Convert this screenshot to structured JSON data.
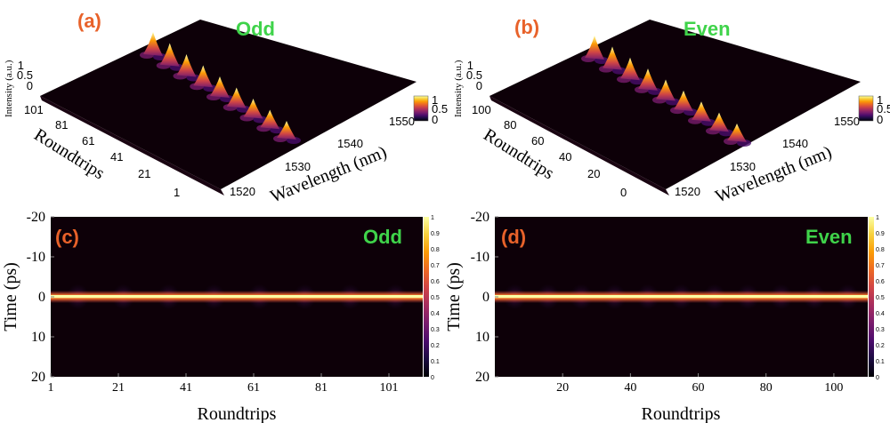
{
  "colors": {
    "panel_label": "#e8622a",
    "mode_label": "#3fd34a",
    "background": "#0d0008",
    "colormap": [
      "#000004",
      "#1b0c41",
      "#4a0c6b",
      "#781c6d",
      "#a52c60",
      "#cf4446",
      "#ed6925",
      "#fb9b06",
      "#f7d13d",
      "#fcffa4"
    ]
  },
  "panels": [
    {
      "id": "a",
      "panel_label": "(a)",
      "mode_label": "Odd",
      "chart_data": {
        "type": "surface3d",
        "zlabel": "Intensity (a.u.)",
        "ylabel": "Roundtrips",
        "xlabel": "Wavelength (nm)",
        "z_ticks": [
          "0",
          "0.5",
          "1"
        ],
        "y_ticks": [
          "101",
          "81",
          "61",
          "41",
          "21",
          "1"
        ],
        "x_ticks": [
          "1520",
          "1530",
          "1540",
          "1550"
        ],
        "colorbar_ticks": [
          "1",
          "0.5",
          "0"
        ],
        "peak_count": 9,
        "zlim": [
          0,
          1
        ]
      }
    },
    {
      "id": "b",
      "panel_label": "(b)",
      "mode_label": "Even",
      "chart_data": {
        "type": "surface3d",
        "zlabel": "Intensity (a.u.)",
        "ylabel": "Roundtrips",
        "xlabel": "Wavelength (nm)",
        "z_ticks": [
          "0",
          "0.5",
          "1"
        ],
        "y_ticks": [
          "100",
          "80",
          "60",
          "40",
          "20",
          "0"
        ],
        "x_ticks": [
          "1520",
          "1530",
          "1540",
          "1550"
        ],
        "colorbar_ticks": [
          "1",
          "0.5",
          "0"
        ],
        "peak_count": 9,
        "zlim": [
          0,
          1
        ]
      }
    },
    {
      "id": "c",
      "panel_label": "(c)",
      "mode_label": "Odd",
      "chart_data": {
        "type": "heatmap",
        "ylabel": "Time (ps)",
        "xlabel": "Roundtrips",
        "y_ticks": [
          "-20",
          "-10",
          "0",
          "10",
          "20"
        ],
        "ylim": [
          -20,
          20
        ],
        "x_ticks": [
          "1",
          "21",
          "41",
          "61",
          "81",
          "101"
        ],
        "xlim": [
          1,
          111
        ],
        "colorbar_ticks": [
          "1",
          "0.9",
          "0.8",
          "0.7",
          "0.6",
          "0.5",
          "0.4",
          "0.3",
          "0.2",
          "0.1",
          "0"
        ],
        "band_count": 8
      }
    },
    {
      "id": "d",
      "panel_label": "(d)",
      "mode_label": "Even",
      "chart_data": {
        "type": "heatmap",
        "ylabel": "Time (ps)",
        "xlabel": "Roundtrips",
        "y_ticks": [
          "-20",
          "-10",
          "0",
          "10",
          "20"
        ],
        "ylim": [
          -20,
          20
        ],
        "x_ticks": [
          "20",
          "40",
          "60",
          "80",
          "100"
        ],
        "xlim": [
          0,
          110
        ],
        "colorbar_ticks": [
          "1",
          "0.9",
          "0.8",
          "0.7",
          "0.6",
          "0.5",
          "0.4",
          "0.3",
          "0.2",
          "0.1",
          "0"
        ],
        "band_count": 11
      }
    }
  ]
}
